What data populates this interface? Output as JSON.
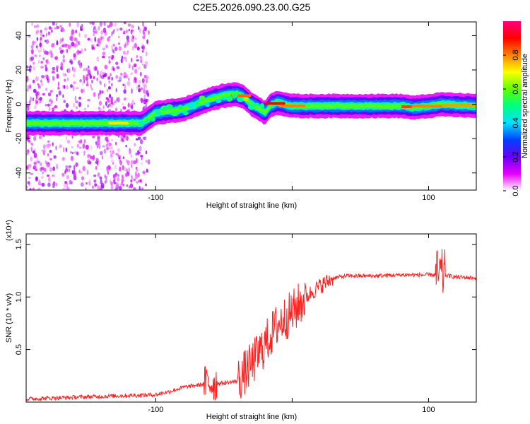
{
  "figure_title": "C2E5.2026.090.23.00.G25",
  "chart_data": [
    {
      "type": "heatmap",
      "xlabel": "Height of straight line (km)",
      "ylabel": "Frequency (Hz)",
      "xlim": [
        -195,
        135
      ],
      "ylim": [
        -50,
        48
      ],
      "x_ticks": [
        -100,
        0,
        100
      ],
      "x_tick_labels": [
        "-100",
        "",
        "100"
      ],
      "y_ticks": [
        -40,
        -20,
        0,
        20,
        40
      ],
      "y_tick_labels": [
        "-40",
        "-20",
        "0",
        "20",
        "40"
      ],
      "colorbar": {
        "label": "Normalized spectral amplitude",
        "range": [
          0,
          1
        ],
        "ticks": [
          0.0,
          0.2,
          0.4,
          0.6,
          0.8
        ],
        "tick_labels": [
          "0.0",
          "0.2",
          "0.4",
          "0.6",
          "0.8"
        ],
        "colors": [
          "#ffffff",
          "#e600ff",
          "#6600ff",
          "#0040ff",
          "#00e0ff",
          "#00ff80",
          "#60ff00",
          "#ffff00",
          "#ff8000",
          "#ff0000",
          "#ff0080"
        ]
      },
      "ridge_frequency_track": {
        "x": [
          -195,
          -150,
          -110,
          -100,
          -80,
          -60,
          -50,
          -40,
          -35,
          -30,
          -25,
          -20,
          -15,
          -10,
          0,
          20,
          50,
          80,
          90,
          100,
          110,
          135
        ],
        "y": [
          -11,
          -11,
          -11,
          -5,
          -3,
          3,
          5,
          6,
          4,
          0,
          -2,
          -5,
          0,
          1,
          -1,
          -1,
          -1,
          -1,
          -2,
          -1,
          0,
          -1
        ]
      },
      "noise_region_x": [
        -195,
        -105
      ]
    },
    {
      "type": "line",
      "xlabel": "Height of straight line (km)",
      "ylabel": "SNR (10 * v/v)",
      "scale_label": "(x10⁴)",
      "xlim": [
        -195,
        135
      ],
      "ylim": [
        0,
        1.6
      ],
      "x_ticks": [
        -100,
        0,
        100
      ],
      "x_tick_labels": [
        "-100",
        "",
        "100"
      ],
      "y_ticks": [
        0.5,
        1.0,
        1.5
      ],
      "y_tick_labels": [
        "0.5",
        "1.0",
        "1.5"
      ],
      "series": [
        {
          "name": "SNR",
          "color": "#ff2020",
          "x": [
            -195,
            -150,
            -100,
            -90,
            -80,
            -70,
            -60,
            -50,
            -40,
            -30,
            -20,
            -10,
            0,
            10,
            20,
            30,
            40,
            60,
            80,
            100,
            110,
            120,
            135
          ],
          "values": [
            0.03,
            0.05,
            0.07,
            0.1,
            0.14,
            0.16,
            0.18,
            0.18,
            0.2,
            0.35,
            0.55,
            0.75,
            0.85,
            1.0,
            1.1,
            1.18,
            1.2,
            1.2,
            1.21,
            1.21,
            1.21,
            1.19,
            1.18
          ]
        }
      ]
    }
  ]
}
